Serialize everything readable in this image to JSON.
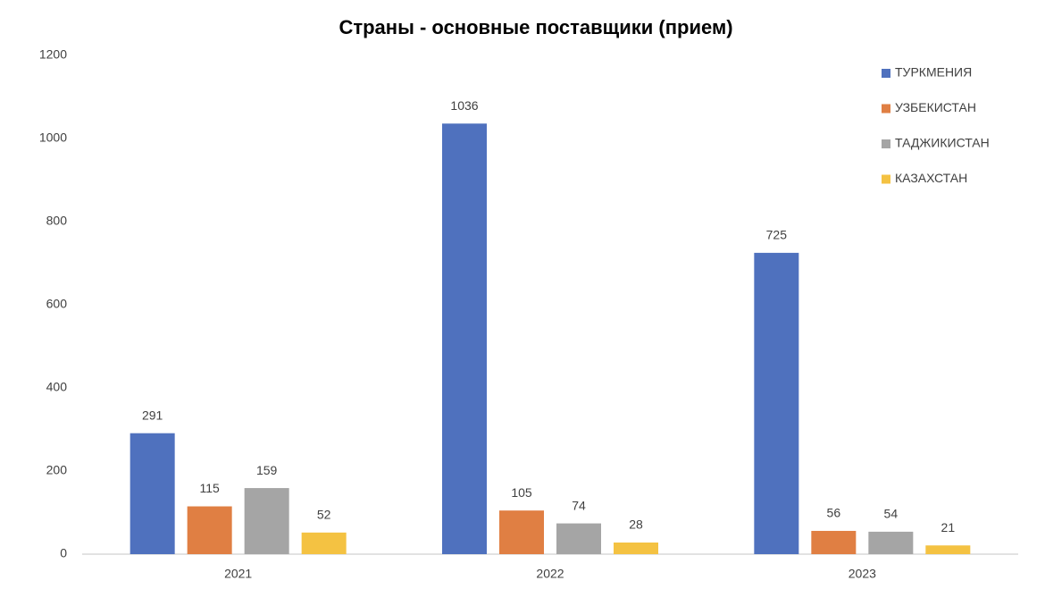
{
  "chart_data": {
    "type": "bar",
    "title": "Страны - основные поставщики (прием)",
    "categories": [
      "2021",
      "2022",
      "2023"
    ],
    "series": [
      {
        "name": "ТУРКМЕНИЯ",
        "color": "#4f71be",
        "values": [
          291,
          1036,
          725
        ]
      },
      {
        "name": "УЗБЕКИСТАН",
        "color": "#e07f43",
        "values": [
          115,
          105,
          56
        ]
      },
      {
        "name": "ТАДЖИКИСТАН",
        "color": "#a5a5a5",
        "values": [
          159,
          74,
          54
        ]
      },
      {
        "name": "КАЗАХСТАН",
        "color": "#f4c242",
        "values": [
          52,
          28,
          21
        ]
      }
    ],
    "ylim": [
      0,
      1200
    ],
    "yticks": [
      0,
      200,
      400,
      600,
      800,
      1000,
      1200
    ],
    "grid": false,
    "legend": "top-right"
  }
}
